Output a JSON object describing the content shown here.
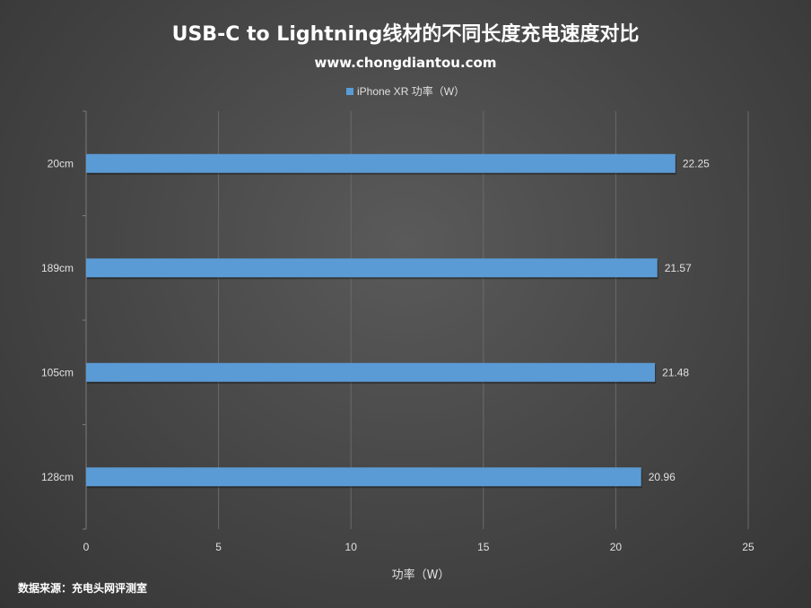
{
  "header": {
    "title": "USB-C to Lightning线材的不同长度充电速度对比",
    "subtitle": "www.chongdiantou.com"
  },
  "footer": {
    "source": "数据来源：充电头网评测室"
  },
  "colors": {
    "bar": "#5b9bd5",
    "grid": "#6a6a6a",
    "text": "#e0e0e0"
  },
  "chart_data": {
    "type": "bar",
    "orientation": "horizontal",
    "title": "USB-C to Lightning线材的不同长度充电速度对比",
    "subtitle": "www.chongdiantou.com",
    "categories": [
      "20cm",
      "189cm",
      "105cm",
      "128cm"
    ],
    "series": [
      {
        "name": "iPhone XR 功率（W）",
        "values": [
          22.25,
          21.57,
          21.48,
          20.96
        ],
        "labels": [
          "22.25",
          "21.57",
          "21.48",
          "20.96"
        ]
      }
    ],
    "xlabel": "功率（W）",
    "ylabel": "",
    "xlim": [
      0,
      25
    ],
    "xticks": [
      0,
      5,
      10,
      15,
      20,
      25
    ],
    "grid": true,
    "legend": "top"
  }
}
